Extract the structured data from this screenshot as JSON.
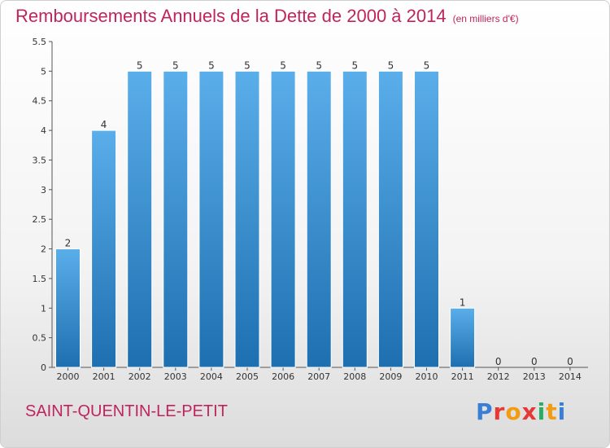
{
  "header": {
    "title": "Remboursements Annuels de la Dette de 2000 à 2014",
    "unit": "(en milliers d'€)"
  },
  "footer": {
    "commune": "SAINT-QUENTIN-LE-PETIT",
    "brand": "Proxiti"
  },
  "colors": {
    "title": "#c0245c",
    "bar_top": "#5aaeea",
    "bar_bottom": "#1e6fb0",
    "brand_letters": [
      "#3a7fd5",
      "#e53935",
      "#f39c12",
      "#e53935",
      "#27ae60",
      "#f39c12",
      "#3a7fd5"
    ]
  },
  "chart_data": {
    "type": "bar",
    "title": "Remboursements Annuels de la Dette de 2000 à 2014",
    "categories": [
      "2000",
      "2001",
      "2002",
      "2003",
      "2004",
      "2005",
      "2006",
      "2007",
      "2008",
      "2009",
      "2010",
      "2011",
      "2012",
      "2013",
      "2014"
    ],
    "values": [
      2,
      4,
      5,
      5,
      5,
      5,
      5,
      5,
      5,
      5,
      5,
      1,
      0,
      0,
      0
    ],
    "y_ticks": [
      "0",
      "0.5",
      "1",
      "1.5",
      "2",
      "2.5",
      "3",
      "3.5",
      "4",
      "4.5",
      "5",
      "5.5"
    ],
    "ylim": [
      0,
      5.5
    ],
    "grid": false,
    "legend": "none"
  }
}
